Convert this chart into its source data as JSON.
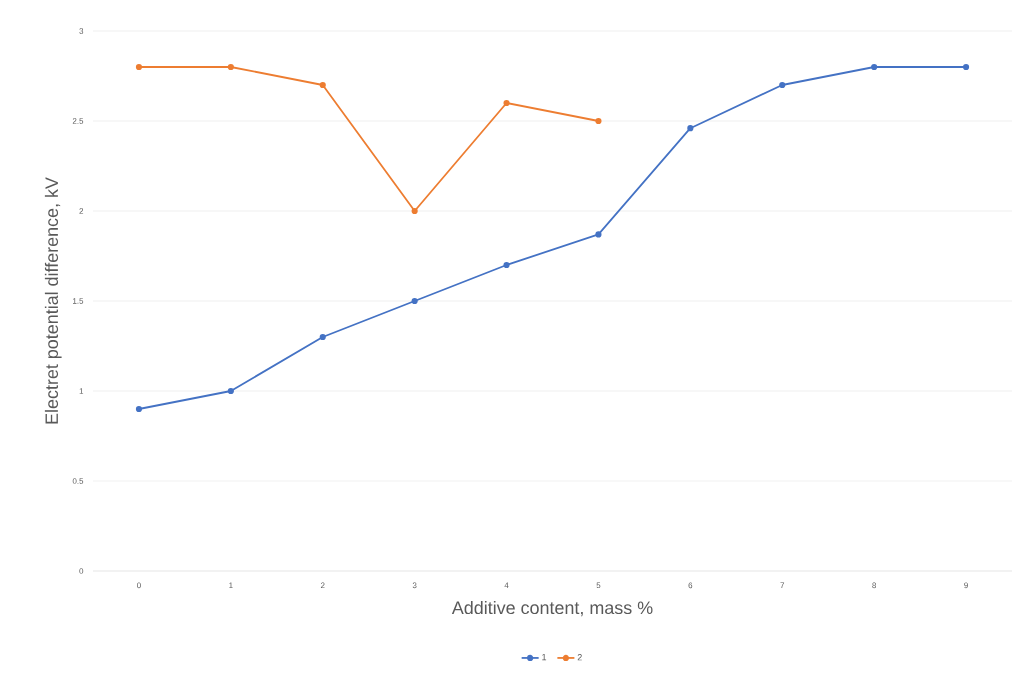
{
  "chart_data": {
    "type": "line",
    "xlabel": "Additive content, mass %",
    "ylabel": "Electret potential difference, kV",
    "categories": [
      "0",
      "1",
      "2",
      "3",
      "4",
      "5",
      "6",
      "7",
      "8",
      "9"
    ],
    "series": [
      {
        "name": "1",
        "color": "#4472c4",
        "values": [
          0.9,
          1.0,
          1.3,
          1.5,
          1.7,
          1.87,
          2.46,
          2.7,
          2.8,
          2.8
        ]
      },
      {
        "name": "2",
        "color": "#ed7d31",
        "values": [
          2.8,
          2.8,
          2.7,
          2.0,
          2.6,
          2.5,
          null,
          null,
          null,
          null
        ]
      }
    ],
    "ylim": [
      0,
      3
    ],
    "yticks": [
      0,
      0.5,
      1,
      1.5,
      2,
      2.5,
      3
    ],
    "grid": "y",
    "legend": "bottom",
    "marker": "circle",
    "line_style": "solid"
  }
}
